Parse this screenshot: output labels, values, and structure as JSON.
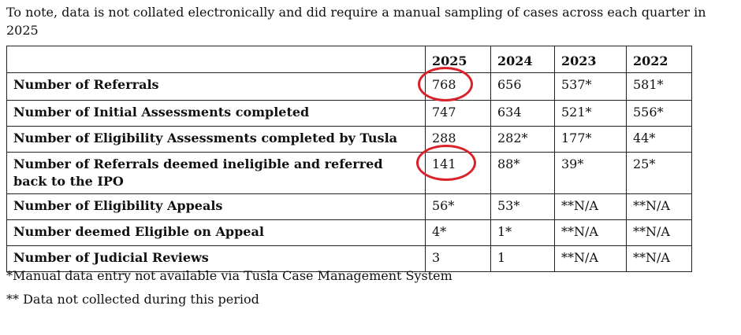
{
  "intro": "To note, data is not collated electronically and did require a manual sampling of cases across each quarter in 2025",
  "table": {
    "headers": [
      "",
      "2025",
      "2024",
      "2023",
      "2022"
    ],
    "rows": [
      {
        "label": "Number of Referrals",
        "values": [
          "768",
          "656",
          "537*",
          "581*"
        ]
      },
      {
        "label": "Number of Initial Assessments completed",
        "values": [
          "747",
          "634",
          "521*",
          "556*"
        ]
      },
      {
        "label": "Number of Eligibility Assessments completed by Tusla",
        "values": [
          "288",
          "282*",
          "177*",
          "44*"
        ]
      },
      {
        "label": "Number of Referrals deemed ineligible and referred back to the IPO",
        "values": [
          "141",
          "88*",
          "39*",
          "25*"
        ]
      },
      {
        "label": "Number of Eligibility Appeals",
        "values": [
          "56*",
          "53*",
          "**N/A",
          "**N/A"
        ]
      },
      {
        "label": "Number deemed Eligible on Appeal",
        "values": [
          "4*",
          "1*",
          "**N/A",
          "**N/A"
        ]
      },
      {
        "label": "Number of Judicial Reviews",
        "values": [
          "3",
          "1",
          "**N/A",
          "**N/A"
        ]
      }
    ]
  },
  "annotation_color": "#d9222a",
  "footnotes": [
    "*Manual data entry not available via Tusla Case Management System",
    "** Data not collected during this period"
  ]
}
